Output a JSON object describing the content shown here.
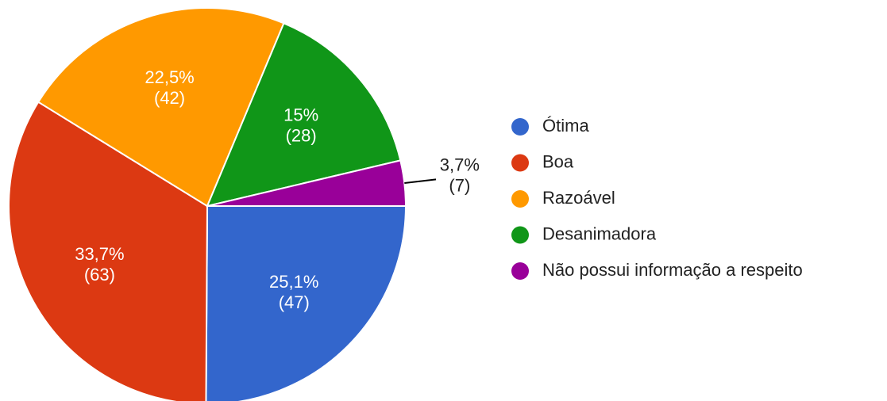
{
  "chart_data": {
    "type": "pie",
    "categories": [
      "Ótima",
      "Boa",
      "Razoável",
      "Desanimadora",
      "Não possui informação a respeito"
    ],
    "values": [
      25.1,
      33.7,
      22.5,
      15,
      3.7
    ],
    "value_labels": [
      "25,1%",
      "33,7%",
      "22,5%",
      "15%",
      "3,7%"
    ],
    "counts": [
      47,
      63,
      42,
      28,
      7
    ],
    "count_labels": [
      "(47)",
      "(63)",
      "(42)",
      "(28)",
      "(7)"
    ],
    "colors": [
      "#3366cc",
      "#dc3912",
      "#ff9900",
      "#109618",
      "#990099"
    ],
    "legend": "right"
  }
}
